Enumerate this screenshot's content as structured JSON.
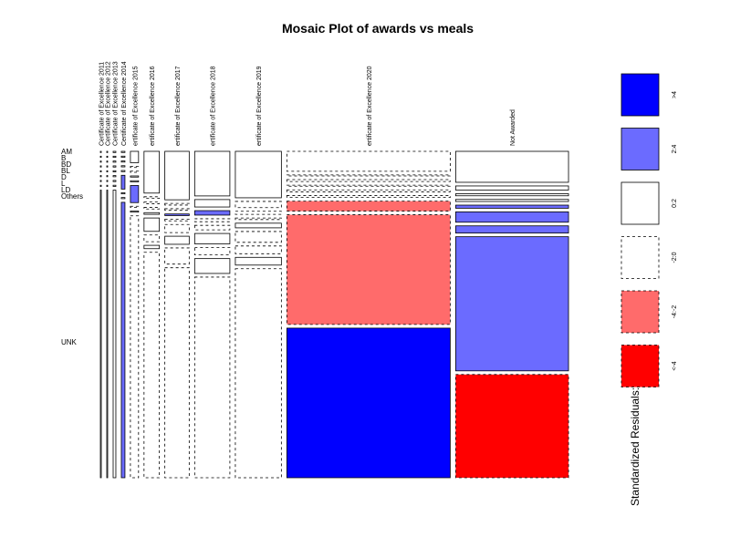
{
  "chart_data": {
    "type": "mosaic",
    "title": "Mosaic Plot of awards vs meals",
    "columns": [
      "Certificate of Excellence 2011",
      "Certificate of Excellence 2012",
      "Certificate of Excellence 2013",
      "Certificate of Excellence 2014",
      "Certificate of Excellence 2015",
      "Certificate of Excellence 2016",
      "Certificate of Excellence 2017",
      "Certificate of Excellence 2018",
      "Certificate of Excellence 2019",
      "Certificate of Excellence 2020",
      "Not Awarded"
    ],
    "column_labels_shown": [
      "Certificate of Excellence 2011",
      "Certificate of Excellence 2012",
      "Certificate of Excellence 2013",
      "Certificate of Excellence 2014",
      "ertificate of Excellence 2015",
      "ertificate of Excellence 2016",
      "ertificate of Excellence 2017",
      "ertificate of Excellence 2018",
      "ertificate of Excellence 2019",
      "ertificate of Excellence 2020",
      "Not Awarded"
    ],
    "column_widths": [
      1,
      1,
      3,
      4,
      9,
      17,
      27,
      39,
      51,
      181,
      125
    ],
    "rows": [
      "AM",
      "B",
      "BD",
      "BL",
      "D",
      "L",
      "LD",
      "Others",
      "UNK"
    ],
    "row_heights": {
      "Certificate of Excellence 2011": [
        1,
        1,
        1,
        1,
        1,
        1,
        1,
        1,
        240
      ],
      "Certificate of Excellence 2012": [
        1,
        1,
        1,
        1,
        1,
        1,
        1,
        1,
        240
      ],
      "Certificate of Excellence 2013": [
        1,
        1,
        1,
        1,
        1,
        1,
        1,
        1,
        240
      ],
      "Certificate of Excellence 2014": [
        1,
        1,
        1,
        1,
        1,
        12,
        1,
        1,
        240
      ],
      "Certificate of Excellence 2015": [
        10,
        1,
        1,
        1,
        1,
        15,
        1,
        1,
        230
      ],
      "Certificate of Excellence 2016": [
        25,
        1,
        1,
        1,
        1,
        8,
        4,
        2,
        135
      ],
      "Certificate of Excellence 2017": [
        30,
        1,
        1,
        1,
        1,
        5,
        5,
        10,
        130
      ],
      "Certificate of Excellence 2018": [
        30,
        5,
        3,
        2,
        3,
        7,
        5,
        10,
        135
      ],
      "Certificate of Excellence 2019": [
        30,
        4,
        2,
        1,
        3,
        7,
        5,
        5,
        135
      ],
      "Certificate of Excellence 2020": [
        20,
        1,
        2,
        1,
        2,
        2,
        10,
        110,
        150
      ],
      "Not Awarded": [
        30,
        4,
        2,
        2,
        3,
        10,
        7,
        130,
        100
      ]
    },
    "residual_class": {
      "Certificate of Excellence 2011": [
        "0:2",
        "0:2",
        "0:2",
        "0:2",
        "0:2",
        "0:2",
        "0:2",
        "0:2",
        "0:2"
      ],
      "Certificate of Excellence 2012": [
        "0:2",
        "0:2",
        "0:2",
        "0:2",
        "0:2",
        "0:2",
        "0:2",
        "0:2",
        "0:2"
      ],
      "Certificate of Excellence 2013": [
        "0:2",
        "0:2",
        "0:2",
        "0:2",
        "0:2",
        "0:2",
        "0:2",
        "0:2",
        "0:2"
      ],
      "Certificate of Excellence 2014": [
        "0:2",
        "0:2",
        "0:2",
        "0:2",
        "0:2",
        "2:4",
        "0:2",
        "0:2",
        "2:4"
      ],
      "Certificate of Excellence 2015": [
        "0:2",
        "-2:0",
        "-2:0",
        "0:2",
        "0:2",
        "2:4",
        "-2:0",
        "0:2",
        "-2:0"
      ],
      "Certificate of Excellence 2016": [
        "0:2",
        "-2:0",
        "-2:0",
        "-2:0",
        "0:2",
        "0:2",
        "-2:0",
        "0:2",
        "-2:0"
      ],
      "Certificate of Excellence 2017": [
        "0:2",
        "-2:0",
        "-2:0",
        "2:4",
        "-2:0",
        "-2:0",
        "0:2",
        "-2:0",
        "-2:0"
      ],
      "Certificate of Excellence 2018": [
        "0:2",
        "0:2",
        "2:4",
        "-2:0",
        "-2:0",
        "0:2",
        "-2:0",
        "0:2",
        "-2:0"
      ],
      "Certificate of Excellence 2019": [
        "0:2",
        "-2:0",
        "-2:0",
        "-2:0",
        "0:2",
        "-2:0",
        "-2:0",
        "0:2",
        "-2:0"
      ],
      "Certificate of Excellence 2020": [
        "-2:0",
        "-2:0",
        "-2:0",
        "-2:0",
        "-2:0",
        "-2:0",
        "-4:-2",
        "-4:-2",
        ">4"
      ],
      "Not Awarded": [
        "0:2",
        "0:2",
        "0:2",
        "0:2",
        "2:4",
        "2:4",
        "2:4",
        "2:4",
        "<-4"
      ]
    },
    "legend": {
      "title": "Standardized Residuals:",
      "entries": [
        ">4",
        "2:4",
        "0:2",
        "-2:0",
        "-4:-2",
        "<-4"
      ],
      "colors": [
        "#0000FF",
        "#6B6BFF",
        "#FFFFFF",
        "#FFFFFF",
        "#FF6B6B",
        "#FF0000"
      ],
      "dashed": [
        false,
        false,
        false,
        true,
        true,
        true
      ]
    },
    "xlabel": "",
    "ylabel": ""
  }
}
